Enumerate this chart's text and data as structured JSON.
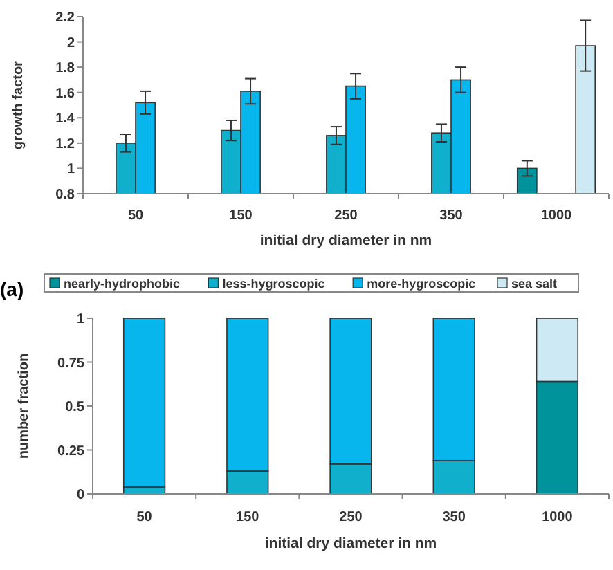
{
  "chart_data": [
    {
      "type": "bar",
      "xlabel": "initial dry diameter in nm",
      "ylabel": "growth factor",
      "categories": [
        "50",
        "150",
        "250",
        "350",
        "1000"
      ],
      "ylim": [
        0.8,
        2.2
      ],
      "yticks": [
        0.8,
        1,
        1.2,
        1.4,
        1.6,
        1.8,
        2,
        2.2
      ],
      "grid": false,
      "series": [
        {
          "color": "#00939b",
          "values": [
            null,
            null,
            null,
            null,
            1.0
          ],
          "errors": [
            null,
            null,
            null,
            null,
            0.06
          ]
        },
        {
          "color": "#10b0cc",
          "values": [
            1.2,
            1.3,
            1.26,
            1.28,
            null
          ],
          "errors": [
            0.07,
            0.08,
            0.07,
            0.07,
            null
          ]
        },
        {
          "color": "#08b6ee",
          "values": [
            1.52,
            1.61,
            1.65,
            1.7,
            null
          ],
          "errors": [
            0.09,
            0.1,
            0.1,
            0.1,
            null
          ]
        },
        {
          "color": "#cde9f3",
          "values": [
            null,
            null,
            null,
            null,
            1.97
          ],
          "errors": [
            null,
            null,
            null,
            null,
            0.2
          ]
        }
      ]
    },
    {
      "type": "bar",
      "stacked": true,
      "xlabel": "initial dry diameter in nm",
      "ylabel": "number fraction",
      "categories": [
        "50",
        "150",
        "250",
        "350",
        "1000"
      ],
      "ylim": [
        0,
        1
      ],
      "yticks": [
        0,
        0.25,
        0.5,
        0.75,
        1
      ],
      "grid": false,
      "legend": "top",
      "annotations": [
        "(a)"
      ],
      "series": [
        {
          "name": "nearly-hydrophobic",
          "color": "#00939b",
          "values": [
            null,
            null,
            null,
            null,
            0.64
          ]
        },
        {
          "name": "less-hygroscopic",
          "color": "#10b0cc",
          "values": [
            0.04,
            0.13,
            0.17,
            0.19,
            null
          ]
        },
        {
          "name": "more-hygroscopic",
          "color": "#08b6ee",
          "values": [
            0.96,
            0.87,
            0.83,
            0.81,
            null
          ]
        },
        {
          "name": "sea salt",
          "color": "#cde9f3",
          "values": [
            null,
            null,
            null,
            null,
            0.36
          ]
        }
      ]
    }
  ]
}
